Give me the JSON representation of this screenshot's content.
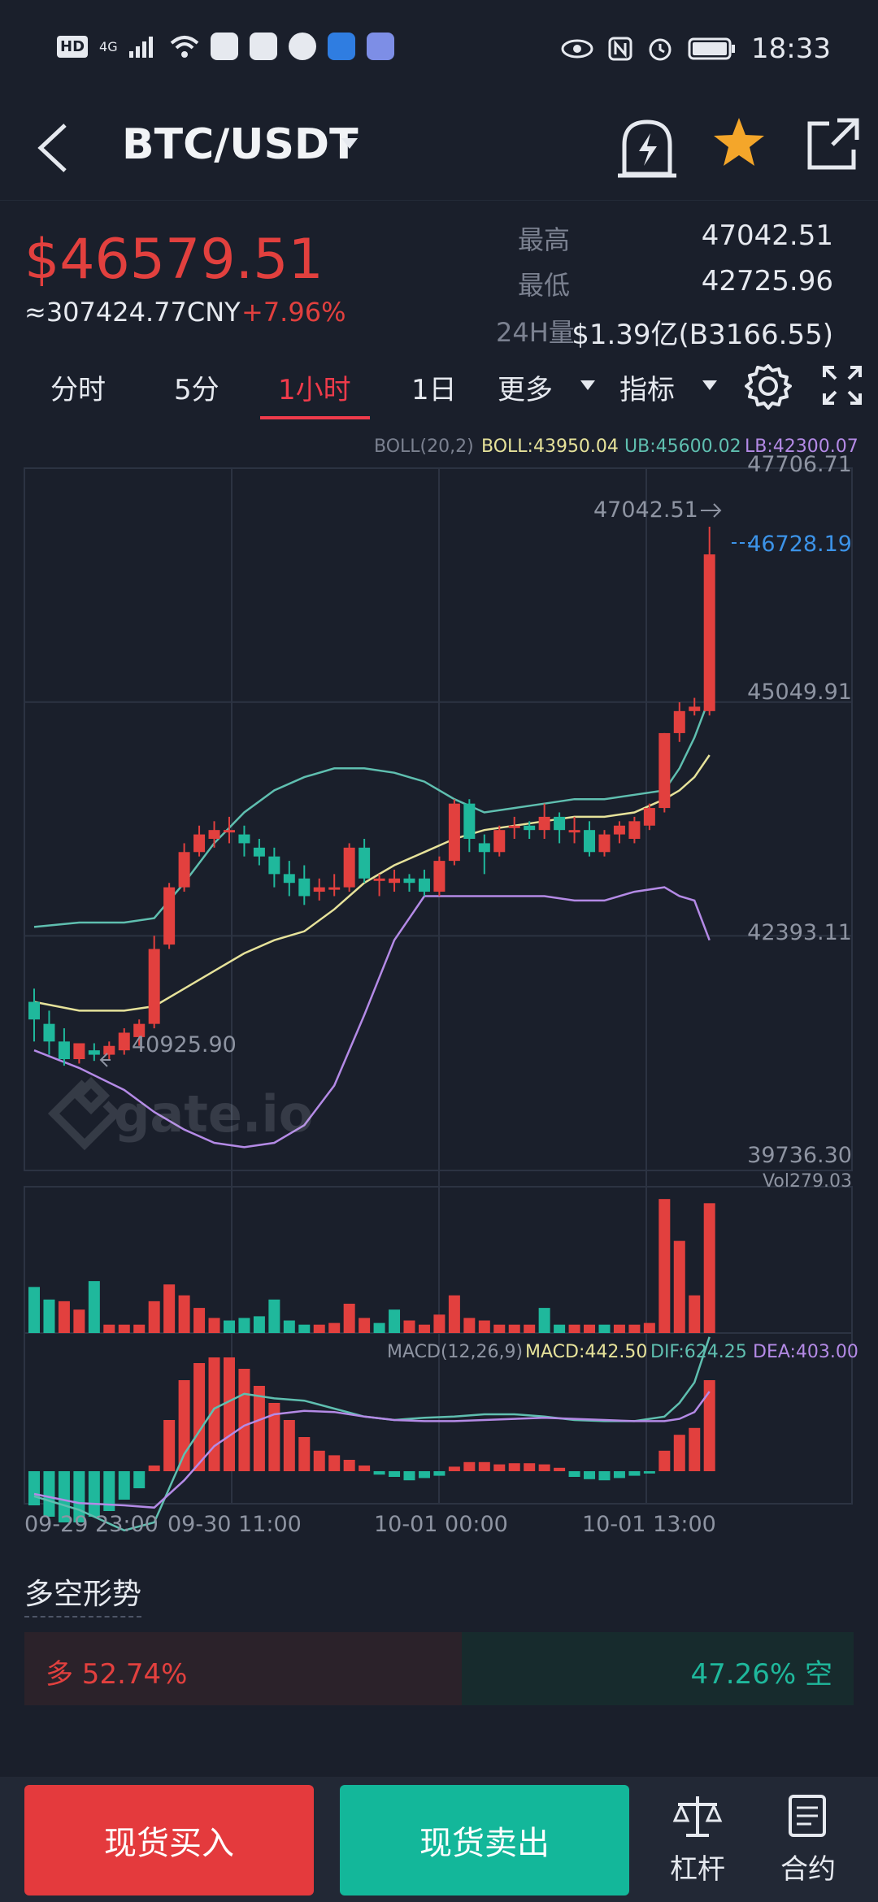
{
  "status_bar": {
    "time": "18:33",
    "hd": "HD",
    "net": "4G"
  },
  "header": {
    "back_icon": "chevron-left-icon",
    "pair": "BTC/USDT",
    "alert_icon": "bell-bolt-icon",
    "favorite_icon": "star-icon",
    "share_icon": "share-icon"
  },
  "ticker": {
    "price": "$46579.51",
    "cny": "≈307424.77CNY",
    "change": "+7.96%",
    "high_label": "最高",
    "high": "47042.51",
    "low_label": "最低",
    "low": "42725.96",
    "vol_label": "24H量",
    "vol": "$1.39亿(B3166.55)"
  },
  "intervals": {
    "items": [
      "分时",
      "5分",
      "1小时",
      "1日",
      "更多",
      "指标"
    ],
    "active": "1小时"
  },
  "colors": {
    "up": "#e2403e",
    "down": "#1fb89c",
    "boll_mid": "#e6e29a",
    "boll_up": "#5fbfb0",
    "boll_low": "#b48ae6",
    "marker": "#3c93e8"
  },
  "chart_data": {
    "type": "candlestick",
    "indicator_boll": {
      "label": "BOLL(20,2)",
      "boll": "BOLL:43950.04",
      "ub": "UB:45600.02",
      "lb": "LB:42300.07"
    },
    "y_ticks": [
      "47706.71",
      "45049.91",
      "42393.11",
      "39736.30"
    ],
    "y_range": [
      39736.3,
      47706.71
    ],
    "price_marker": "46728.19",
    "high_marker": "47042.51",
    "low_marker": "40925.90",
    "x_ticks": [
      "09-29 23:00",
      "09-30 11:00",
      "10-01 00:00",
      "10-01 13:00"
    ],
    "vol_label": "Vol279.03",
    "macd_label": {
      "name": "MACD(12,26,9)",
      "macd": "MACD:442.50",
      "dif": "DIF:624.25",
      "dea": "DEA:403.00"
    },
    "candles": [
      {
        "o": 41650,
        "h": 41800,
        "c": 41450,
        "l": 41200
      },
      {
        "o": 41400,
        "h": 41550,
        "c": 41200,
        "l": 41050
      },
      {
        "o": 41200,
        "h": 41350,
        "c": 41000,
        "l": 40925.9
      },
      {
        "o": 41000,
        "h": 41150,
        "c": 41180,
        "l": 40950
      },
      {
        "o": 41100,
        "h": 41180,
        "c": 41050,
        "l": 40980
      },
      {
        "o": 41050,
        "h": 41200,
        "c": 41150,
        "l": 41000
      },
      {
        "o": 41100,
        "h": 41350,
        "c": 41300,
        "l": 41050
      },
      {
        "o": 41250,
        "h": 41450,
        "c": 41400,
        "l": 41150
      },
      {
        "o": 41400,
        "h": 42400,
        "c": 42250,
        "l": 41350
      },
      {
        "o": 42300,
        "h": 43000,
        "c": 42950,
        "l": 42250
      },
      {
        "o": 42950,
        "h": 43450,
        "c": 43350,
        "l": 42900
      },
      {
        "o": 43350,
        "h": 43650,
        "c": 43550,
        "l": 43300
      },
      {
        "o": 43500,
        "h": 43700,
        "c": 43600,
        "l": 43400
      },
      {
        "o": 43600,
        "h": 43750,
        "c": 43600,
        "l": 43450
      },
      {
        "o": 43550,
        "h": 43650,
        "c": 43450,
        "l": 43300
      },
      {
        "o": 43400,
        "h": 43500,
        "c": 43300,
        "l": 43200
      },
      {
        "o": 43300,
        "h": 43400,
        "c": 43100,
        "l": 42950
      },
      {
        "o": 43100,
        "h": 43250,
        "c": 43000,
        "l": 42850
      },
      {
        "o": 43050,
        "h": 43200,
        "c": 42850,
        "l": 42750
      },
      {
        "o": 42900,
        "h": 43050,
        "c": 42950,
        "l": 42800
      },
      {
        "o": 42950,
        "h": 43100,
        "c": 42950,
        "l": 42850
      },
      {
        "o": 42950,
        "h": 43450,
        "c": 43400,
        "l": 42900
      },
      {
        "o": 43400,
        "h": 43500,
        "c": 43050,
        "l": 43000
      },
      {
        "o": 43050,
        "h": 43100,
        "c": 43050,
        "l": 42850
      },
      {
        "o": 43000,
        "h": 43150,
        "c": 43050,
        "l": 42900
      },
      {
        "o": 43050,
        "h": 43100,
        "c": 43000,
        "l": 42900
      },
      {
        "o": 43050,
        "h": 43150,
        "c": 42900,
        "l": 42850
      },
      {
        "o": 42900,
        "h": 43300,
        "c": 43250,
        "l": 42850
      },
      {
        "o": 43250,
        "h": 43950,
        "c": 43900,
        "l": 43200
      },
      {
        "o": 43900,
        "h": 43950,
        "c": 43500,
        "l": 43350
      },
      {
        "o": 43450,
        "h": 43550,
        "c": 43350,
        "l": 43100
      },
      {
        "o": 43350,
        "h": 43650,
        "c": 43600,
        "l": 43300
      },
      {
        "o": 43650,
        "h": 43750,
        "c": 43650,
        "l": 43500
      },
      {
        "o": 43650,
        "h": 43700,
        "c": 43600,
        "l": 43500
      },
      {
        "o": 43600,
        "h": 43900,
        "c": 43750,
        "l": 43500
      },
      {
        "o": 43750,
        "h": 43800,
        "c": 43600,
        "l": 43450
      },
      {
        "o": 43600,
        "h": 43750,
        "c": 43600,
        "l": 43450
      },
      {
        "o": 43600,
        "h": 43700,
        "c": 43350,
        "l": 43300
      },
      {
        "o": 43350,
        "h": 43600,
        "c": 43550,
        "l": 43300
      },
      {
        "o": 43550,
        "h": 43700,
        "c": 43650,
        "l": 43450
      },
      {
        "o": 43500,
        "h": 43750,
        "c": 43700,
        "l": 43450
      },
      {
        "o": 43650,
        "h": 43900,
        "c": 43850,
        "l": 43600
      },
      {
        "o": 43850,
        "h": 44700,
        "c": 44700,
        "l": 43800
      },
      {
        "o": 44700,
        "h": 45050,
        "c": 44950,
        "l": 44600
      },
      {
        "o": 44950,
        "h": 45100,
        "c": 45000,
        "l": 44900
      },
      {
        "o": 44950,
        "h": 47042.51,
        "c": 46728.19,
        "l": 44900
      }
    ],
    "boll_upper": [
      [
        0,
        42500
      ],
      [
        3,
        42550
      ],
      [
        6,
        42550
      ],
      [
        8,
        42600
      ],
      [
        10,
        43000
      ],
      [
        12,
        43450
      ],
      [
        14,
        43800
      ],
      [
        16,
        44050
      ],
      [
        18,
        44200
      ],
      [
        20,
        44300
      ],
      [
        22,
        44300
      ],
      [
        24,
        44250
      ],
      [
        26,
        44150
      ],
      [
        28,
        43950
      ],
      [
        30,
        43800
      ],
      [
        32,
        43850
      ],
      [
        34,
        43900
      ],
      [
        36,
        43950
      ],
      [
        38,
        43950
      ],
      [
        40,
        44000
      ],
      [
        42,
        44050
      ],
      [
        43,
        44300
      ],
      [
        44,
        44650
      ],
      [
        45,
        45100
      ]
    ],
    "boll_mid_line": [
      [
        0,
        41650
      ],
      [
        3,
        41550
      ],
      [
        6,
        41550
      ],
      [
        8,
        41600
      ],
      [
        10,
        41800
      ],
      [
        12,
        42000
      ],
      [
        14,
        42200
      ],
      [
        16,
        42350
      ],
      [
        18,
        42450
      ],
      [
        20,
        42700
      ],
      [
        22,
        43000
      ],
      [
        24,
        43200
      ],
      [
        26,
        43350
      ],
      [
        28,
        43500
      ],
      [
        30,
        43600
      ],
      [
        32,
        43650
      ],
      [
        34,
        43700
      ],
      [
        36,
        43750
      ],
      [
        38,
        43750
      ],
      [
        40,
        43800
      ],
      [
        42,
        43950
      ],
      [
        43,
        44050
      ],
      [
        44,
        44200
      ],
      [
        45,
        44450
      ]
    ],
    "boll_lower": [
      [
        0,
        41100
      ],
      [
        3,
        40900
      ],
      [
        6,
        40650
      ],
      [
        8,
        40400
      ],
      [
        10,
        40200
      ],
      [
        12,
        40050
      ],
      [
        14,
        40000
      ],
      [
        16,
        40050
      ],
      [
        18,
        40250
      ],
      [
        20,
        40700
      ],
      [
        22,
        41500
      ],
      [
        24,
        42350
      ],
      [
        26,
        42850
      ],
      [
        28,
        42850
      ],
      [
        30,
        42850
      ],
      [
        32,
        42850
      ],
      [
        34,
        42850
      ],
      [
        36,
        42800
      ],
      [
        38,
        42800
      ],
      [
        40,
        42900
      ],
      [
        42,
        42950
      ],
      [
        43,
        42850
      ],
      [
        44,
        42800
      ],
      [
        45,
        42350
      ]
    ],
    "volumes": [
      {
        "v": 55,
        "up": false
      },
      {
        "v": 40,
        "up": false
      },
      {
        "v": 38,
        "up": true
      },
      {
        "v": 28,
        "up": true
      },
      {
        "v": 62,
        "up": false
      },
      {
        "v": 10,
        "up": true
      },
      {
        "v": 10,
        "up": true
      },
      {
        "v": 10,
        "up": true
      },
      {
        "v": 38,
        "up": true
      },
      {
        "v": 58,
        "up": true
      },
      {
        "v": 45,
        "up": true
      },
      {
        "v": 30,
        "up": true
      },
      {
        "v": 18,
        "up": true
      },
      {
        "v": 15,
        "up": false
      },
      {
        "v": 18,
        "up": false
      },
      {
        "v": 20,
        "up": false
      },
      {
        "v": 40,
        "up": false
      },
      {
        "v": 15,
        "up": false
      },
      {
        "v": 10,
        "up": false
      },
      {
        "v": 10,
        "up": true
      },
      {
        "v": 12,
        "up": true
      },
      {
        "v": 35,
        "up": true
      },
      {
        "v": 18,
        "up": true
      },
      {
        "v": 12,
        "up": false
      },
      {
        "v": 28,
        "up": false
      },
      {
        "v": 15,
        "up": true
      },
      {
        "v": 10,
        "up": true
      },
      {
        "v": 22,
        "up": true
      },
      {
        "v": 45,
        "up": true
      },
      {
        "v": 18,
        "up": true
      },
      {
        "v": 15,
        "up": true
      },
      {
        "v": 10,
        "up": true
      },
      {
        "v": 10,
        "up": true
      },
      {
        "v": 10,
        "up": true
      },
      {
        "v": 30,
        "up": false
      },
      {
        "v": 10,
        "up": false
      },
      {
        "v": 10,
        "up": true
      },
      {
        "v": 10,
        "up": true
      },
      {
        "v": 10,
        "up": false
      },
      {
        "v": 10,
        "up": true
      },
      {
        "v": 10,
        "up": true
      },
      {
        "v": 12,
        "up": true
      },
      {
        "v": 160,
        "up": true
      },
      {
        "v": 110,
        "up": true
      },
      {
        "v": 45,
        "up": true
      },
      {
        "v": 155,
        "up": true
      }
    ],
    "macd_hist": [
      -30,
      -40,
      -45,
      -45,
      -40,
      -35,
      -25,
      -15,
      5,
      45,
      80,
      95,
      100,
      100,
      90,
      75,
      60,
      45,
      30,
      18,
      14,
      10,
      5,
      -3,
      -5,
      -8,
      -6,
      -4,
      4,
      8,
      8,
      6,
      7,
      7,
      6,
      3,
      -5,
      -7,
      -8,
      -6,
      -4,
      -2,
      18,
      32,
      38,
      80
    ],
    "macd_dif": [
      [
        0,
        -22
      ],
      [
        3,
        -34
      ],
      [
        6,
        -52
      ],
      [
        8,
        -45
      ],
      [
        10,
        15
      ],
      [
        12,
        55
      ],
      [
        14,
        68
      ],
      [
        16,
        64
      ],
      [
        18,
        62
      ],
      [
        20,
        55
      ],
      [
        22,
        48
      ],
      [
        24,
        45
      ],
      [
        26,
        47
      ],
      [
        28,
        48
      ],
      [
        30,
        50
      ],
      [
        32,
        50
      ],
      [
        34,
        48
      ],
      [
        36,
        45
      ],
      [
        38,
        44
      ],
      [
        40,
        44
      ],
      [
        42,
        48
      ],
      [
        43,
        60
      ],
      [
        44,
        78
      ],
      [
        45,
        118
      ]
    ],
    "macd_dea": [
      [
        0,
        -20
      ],
      [
        3,
        -28
      ],
      [
        6,
        -30
      ],
      [
        8,
        -32
      ],
      [
        10,
        -8
      ],
      [
        12,
        22
      ],
      [
        14,
        40
      ],
      [
        16,
        50
      ],
      [
        18,
        53
      ],
      [
        20,
        52
      ],
      [
        22,
        48
      ],
      [
        24,
        45
      ],
      [
        26,
        44
      ],
      [
        28,
        44
      ],
      [
        30,
        45
      ],
      [
        32,
        46
      ],
      [
        34,
        47
      ],
      [
        36,
        46
      ],
      [
        38,
        45
      ],
      [
        40,
        44
      ],
      [
        42,
        44
      ],
      [
        43,
        46
      ],
      [
        44,
        52
      ],
      [
        45,
        70
      ]
    ]
  },
  "long_short": {
    "title": "多空形势",
    "long": "多 52.74%",
    "short": "47.26% 空",
    "long_ratio": 0.5274
  },
  "bottom": {
    "buy": "现货买入",
    "sell": "现货卖出",
    "leverage": "杠杆",
    "contract": "合约"
  }
}
